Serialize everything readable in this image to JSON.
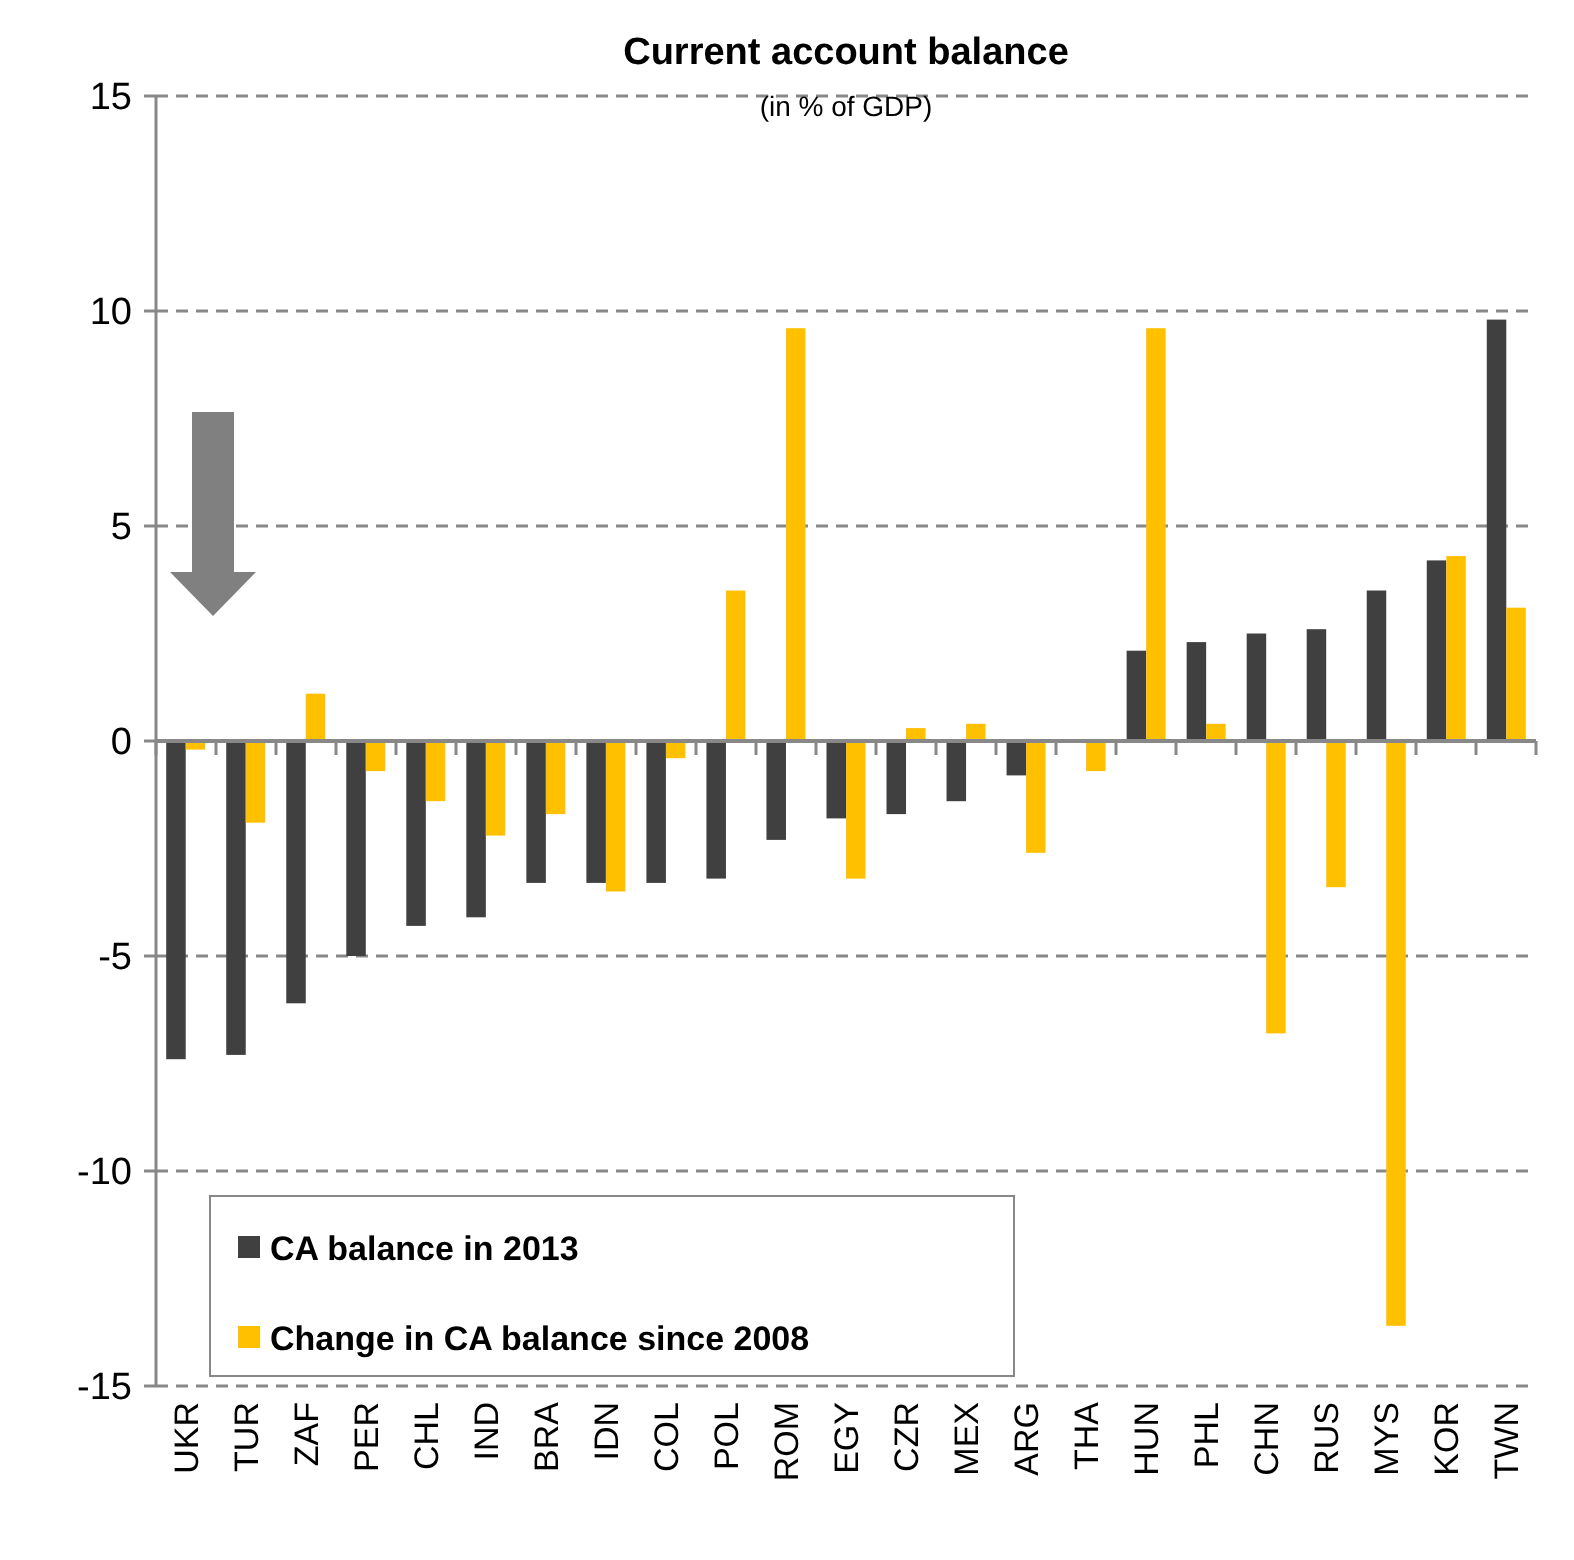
{
  "chart_data": {
    "type": "bar",
    "title": "Current account balance",
    "subtitle": "(in % of GDP)",
    "categories": [
      "UKR",
      "TUR",
      "ZAF",
      "PER",
      "CHL",
      "IND",
      "BRA",
      "IDN",
      "COL",
      "POL",
      "ROM",
      "EGY",
      "CZR",
      "MEX",
      "ARG",
      "THA",
      "HUN",
      "PHL",
      "CHN",
      "RUS",
      "MYS",
      "KOR",
      "TWN"
    ],
    "series": [
      {
        "name": "CA balance in 2013",
        "color": "#404040",
        "values": [
          -7.4,
          -7.3,
          -6.1,
          -5.0,
          -4.3,
          -4.1,
          -3.3,
          -3.3,
          -3.3,
          -3.2,
          -2.3,
          -1.8,
          -1.7,
          -1.4,
          -0.8,
          null,
          2.1,
          2.3,
          2.5,
          2.6,
          3.5,
          4.2,
          9.8
        ]
      },
      {
        "name": "Change in CA balance since 2008",
        "color": "#ffc000",
        "values": [
          -0.2,
          -1.9,
          1.1,
          -0.7,
          -1.4,
          -2.2,
          -1.7,
          -3.5,
          -0.4,
          3.5,
          9.6,
          -3.2,
          0.3,
          0.4,
          -2.6,
          -0.7,
          9.6,
          0.4,
          -6.8,
          -3.4,
          -13.6,
          4.3,
          3.1
        ]
      }
    ],
    "ylim": [
      -15,
      15
    ],
    "yticks": [
      -15,
      -10,
      -5,
      0,
      5,
      10,
      15
    ],
    "grid": "y",
    "legend": "bottom left"
  }
}
